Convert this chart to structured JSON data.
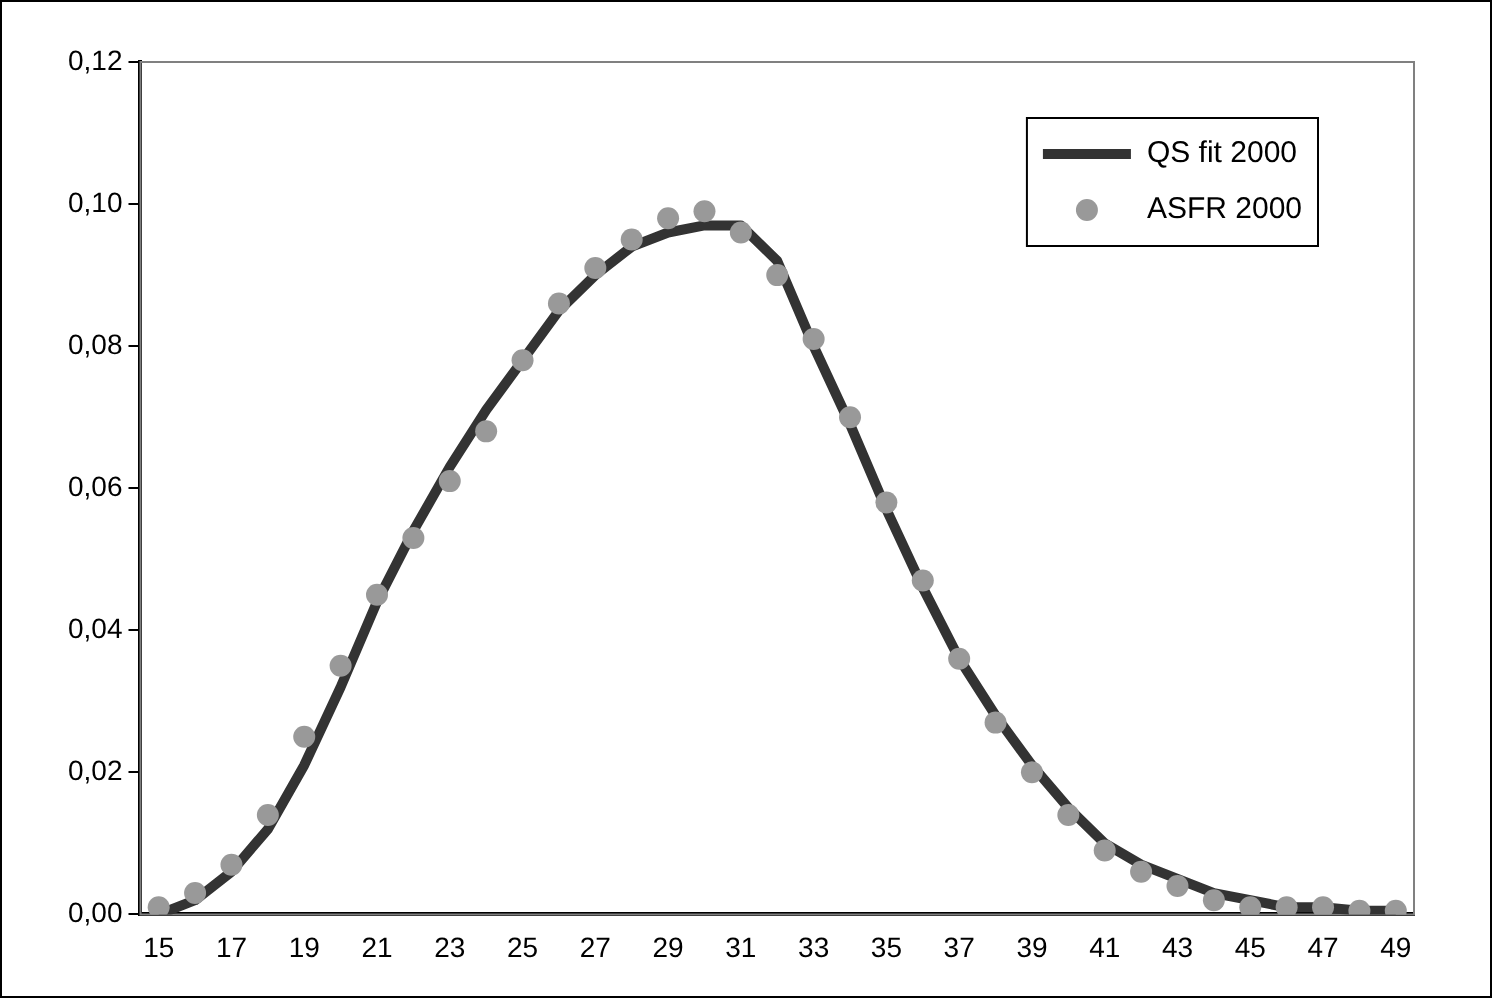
{
  "chart_data": {
    "type": "line",
    "categories": [
      "15",
      null,
      "17",
      null,
      "19",
      null,
      "21",
      null,
      "23",
      null,
      "25",
      null,
      "27",
      null,
      "29",
      null,
      "31",
      null,
      "33",
      null,
      "35",
      null,
      "37",
      null,
      "39",
      null,
      "41",
      null,
      "43",
      null,
      "45",
      null,
      "47",
      null,
      "49"
    ],
    "series": [
      {
        "name": "QS fit 2000",
        "color": "#333333",
        "marker": "none",
        "values": [
          0.0,
          0.002,
          0.006,
          0.012,
          0.021,
          0.032,
          0.044,
          0.054,
          0.063,
          0.071,
          0.078,
          0.085,
          0.09,
          0.094,
          0.096,
          0.097,
          0.097,
          0.092,
          0.08,
          0.069,
          0.057,
          0.046,
          0.036,
          0.028,
          0.021,
          0.015,
          0.01,
          0.007,
          0.005,
          0.003,
          0.002,
          0.001,
          0.001,
          0.0005,
          0.0005
        ]
      },
      {
        "name": "ASFR 2000",
        "type": "scatter",
        "color": "#999999",
        "marker": "circle",
        "values": [
          0.001,
          0.003,
          0.007,
          0.014,
          0.025,
          0.035,
          0.045,
          0.053,
          0.061,
          0.068,
          0.078,
          0.086,
          0.091,
          0.095,
          0.098,
          0.099,
          0.096,
          0.09,
          0.081,
          0.07,
          0.058,
          0.047,
          0.036,
          0.027,
          0.02,
          0.014,
          0.009,
          0.006,
          0.004,
          0.002,
          0.001,
          0.001,
          0.001,
          0.0005,
          0.0005
        ]
      }
    ],
    "ylim": [
      0,
      0.12
    ],
    "yticks": [
      {
        "value": 0,
        "label": "0,00"
      },
      {
        "value": 0.02,
        "label": "0,02"
      },
      {
        "value": 0.04,
        "label": "0,04"
      },
      {
        "value": 0.06,
        "label": "0,06"
      },
      {
        "value": 0.08,
        "label": "0,08"
      },
      {
        "value": 0.1,
        "label": "0,10"
      },
      {
        "value": 0.12,
        "label": "0,12"
      }
    ],
    "grid": false,
    "legend": "top right"
  }
}
